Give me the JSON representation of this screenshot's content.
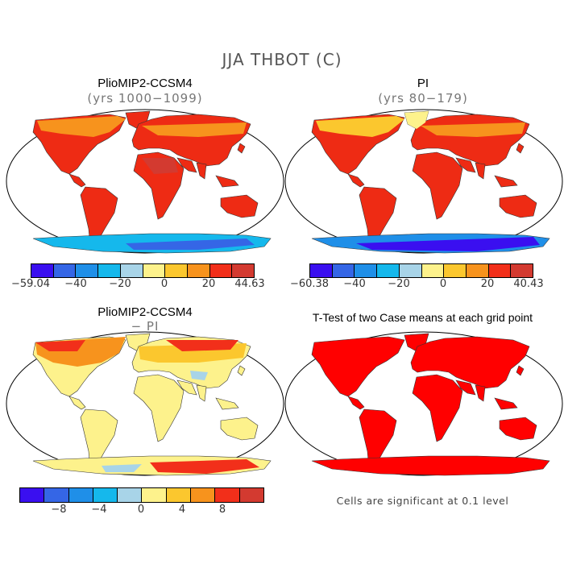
{
  "title": "JJA THBOT (C)",
  "palette_full": [
    "#3a0ff0",
    "#3566e6",
    "#1f8fe8",
    "#15b8ec",
    "#a8d4e8",
    "#fdf28c",
    "#fbc72e",
    "#f7931d",
    "#f22f1a",
    "#d33a30"
  ],
  "panels": [
    {
      "id": "pliomip2",
      "title": "PlioMIP2-CCSM4",
      "subtitle": "(yrs 1000−1099)",
      "colorbar": {
        "min_label": "−59.04",
        "max_label": "44.63",
        "ticks": [
          "−40",
          "−20",
          "0",
          "20"
        ]
      }
    },
    {
      "id": "pi",
      "title": "PI",
      "subtitle": "(yrs 80−179)",
      "colorbar": {
        "min_label": "−60.38",
        "max_label": "40.43",
        "ticks": [
          "−40",
          "−20",
          "0",
          "20"
        ]
      }
    },
    {
      "id": "difference",
      "title": "PlioMIP2-CCSM4",
      "subtitle": "− PI",
      "colorbar": {
        "ticks": [
          "−8",
          "−4",
          "0",
          "4",
          "8"
        ]
      }
    },
    {
      "id": "ttest",
      "title": "T-Test of two Case means at each grid point",
      "note": "Cells are significant at 0.1 level"
    }
  ]
}
